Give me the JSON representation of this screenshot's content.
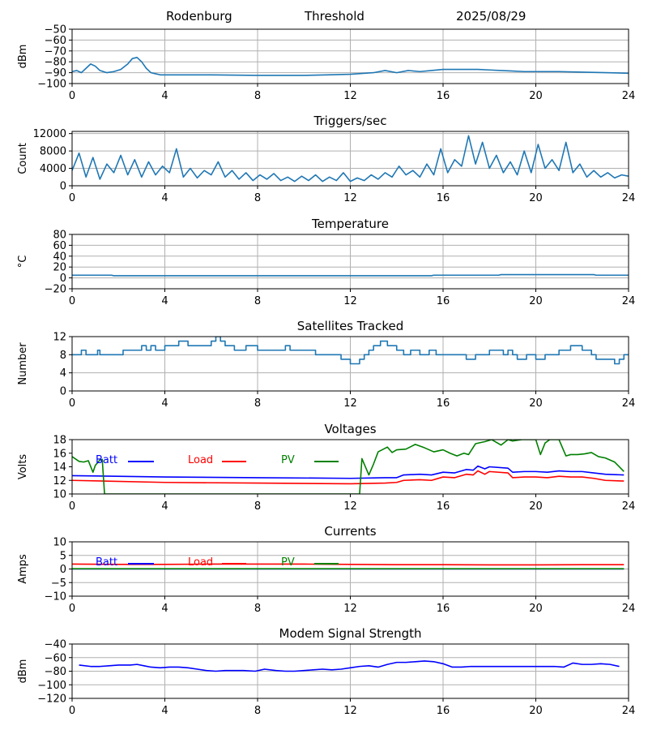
{
  "header": {
    "station": "Rodenburg",
    "mode": "Threshold",
    "date": "2025/08/29"
  },
  "colors": {
    "default": "#1f77b4",
    "batt": "#0000ff",
    "load": "#ff0000",
    "pv": "#008000",
    "grid": "#b0b0b0"
  },
  "chart_data": [
    {
      "type": "line",
      "title": "",
      "ylabel": "dBm",
      "xlim": [
        0,
        24
      ],
      "ylim": [
        -100,
        -50
      ],
      "xticks": [
        0,
        4,
        8,
        12,
        16,
        20,
        24
      ],
      "yticks": [
        -100,
        -90,
        -80,
        -70,
        -60,
        -50
      ],
      "grid": true,
      "series": [
        {
          "color": "#1f77b4",
          "x": [
            0,
            0.2,
            0.4,
            0.6,
            0.8,
            1.0,
            1.2,
            1.5,
            1.8,
            2.1,
            2.4,
            2.6,
            2.8,
            3.0,
            3.2,
            3.4,
            3.6,
            3.8,
            4.0,
            5,
            6,
            8,
            10,
            11,
            12,
            13,
            13.5,
            14,
            14.5,
            15,
            15.5,
            16,
            16.5,
            17,
            17.5,
            18,
            18.5,
            19,
            19.5,
            20,
            21,
            22,
            23,
            24
          ],
          "y": [
            -89,
            -88,
            -90,
            -86,
            -82,
            -84,
            -88,
            -90,
            -89,
            -87,
            -82,
            -77,
            -76,
            -80,
            -86,
            -90,
            -91,
            -92,
            -92,
            -92,
            -92,
            -92.5,
            -92.5,
            -92,
            -91.5,
            -90,
            -88,
            -90,
            -88,
            -89,
            -88,
            -87,
            -87,
            -87,
            -87,
            -87.5,
            -88,
            -88.5,
            -89,
            -89,
            -89,
            -89.5,
            -90,
            -90.5
          ]
        }
      ]
    },
    {
      "type": "line",
      "title": "Triggers/sec",
      "ylabel": "Count",
      "xlim": [
        0,
        24
      ],
      "ylim": [
        0,
        12500
      ],
      "xticks": [
        0,
        4,
        8,
        12,
        16,
        20,
        24
      ],
      "yticks": [
        0,
        4000,
        8000,
        12000
      ],
      "grid": true,
      "series": [
        {
          "color": "#1f77b4",
          "x": [
            0,
            0.3,
            0.6,
            0.9,
            1.2,
            1.5,
            1.8,
            2.1,
            2.4,
            2.7,
            3.0,
            3.3,
            3.6,
            3.9,
            4.2,
            4.5,
            4.8,
            5.1,
            5.4,
            5.7,
            6.0,
            6.3,
            6.6,
            6.9,
            7.2,
            7.5,
            7.8,
            8.1,
            8.4,
            8.7,
            9.0,
            9.3,
            9.6,
            9.9,
            10.2,
            10.5,
            10.8,
            11.1,
            11.4,
            11.7,
            12.0,
            12.3,
            12.6,
            12.9,
            13.2,
            13.5,
            13.8,
            14.1,
            14.4,
            14.7,
            15.0,
            15.3,
            15.6,
            15.9,
            16.2,
            16.5,
            16.8,
            17.1,
            17.4,
            17.7,
            18.0,
            18.3,
            18.6,
            18.9,
            19.2,
            19.5,
            19.8,
            20.1,
            20.4,
            20.7,
            21.0,
            21.3,
            21.6,
            21.9,
            22.2,
            22.5,
            22.8,
            23.1,
            23.4,
            23.7,
            24
          ],
          "y": [
            3500,
            7500,
            2000,
            6500,
            1500,
            5000,
            3000,
            7000,
            2500,
            6000,
            2000,
            5500,
            2500,
            4500,
            3000,
            8500,
            2000,
            4000,
            1800,
            3500,
            2500,
            5500,
            2000,
            3500,
            1500,
            3000,
            1200,
            2500,
            1500,
            2800,
            1200,
            2000,
            1000,
            2200,
            1200,
            2500,
            1000,
            2000,
            1200,
            3000,
            1000,
            1800,
            1200,
            2500,
            1500,
            3000,
            2000,
            4500,
            2500,
            3500,
            2000,
            5000,
            2500,
            8500,
            3000,
            6000,
            4500,
            11500,
            5000,
            10000,
            4000,
            7000,
            3000,
            5500,
            2500,
            8000,
            3000,
            9500,
            4000,
            6000,
            3500,
            10000,
            3000,
            5000,
            2000,
            3500,
            2000,
            3000,
            1800,
            2500,
            2200
          ]
        }
      ]
    },
    {
      "type": "line",
      "title": "Temperature",
      "ylabel": "°C",
      "xlim": [
        0,
        24
      ],
      "ylim": [
        -20,
        80
      ],
      "xticks": [
        0,
        4,
        8,
        12,
        16,
        20,
        24
      ],
      "yticks": [
        -20,
        0,
        20,
        40,
        60,
        80
      ],
      "grid": true,
      "series": [
        {
          "color": "#1f77b4",
          "x": [
            0,
            1.7,
            1.8,
            8,
            12,
            15.5,
            15.6,
            18.4,
            18.5,
            22.5,
            22.6,
            24
          ],
          "y": [
            5,
            5,
            4,
            4,
            4,
            4,
            5,
            5,
            6,
            6,
            5,
            5
          ]
        }
      ]
    },
    {
      "type": "line",
      "title": "Satellites Tracked",
      "ylabel": "Number",
      "xlim": [
        0,
        24
      ],
      "ylim": [
        0,
        12
      ],
      "xticks": [
        0,
        4,
        8,
        12,
        16,
        20,
        24
      ],
      "yticks": [
        0,
        4,
        8,
        12
      ],
      "grid": true,
      "step": true,
      "series": [
        {
          "color": "#1f77b4",
          "x": [
            0,
            0.4,
            0.6,
            1.1,
            1.2,
            2.2,
            3.0,
            3.2,
            3.4,
            3.6,
            4.0,
            4.6,
            5.0,
            6.0,
            6.2,
            6.4,
            6.6,
            7.0,
            7.5,
            8,
            9,
            9.2,
            9.4,
            10.0,
            10.5,
            11.0,
            11.6,
            12.0,
            12.4,
            12.6,
            12.8,
            13.0,
            13.3,
            13.6,
            14.0,
            14.3,
            14.6,
            15.0,
            15.4,
            15.7,
            16.0,
            16.8,
            17.0,
            17.4,
            18.0,
            18.6,
            18.8,
            19.0,
            19.2,
            19.6,
            20.0,
            20.4,
            21.0,
            21.5,
            22.0,
            22.4,
            22.6,
            23.0,
            23.4,
            23.6,
            23.8,
            24
          ],
          "y": [
            8,
            9,
            8,
            9,
            8,
            9,
            10,
            9,
            10,
            9,
            10,
            11,
            10,
            11,
            12,
            11,
            10,
            9,
            10,
            9,
            9,
            10,
            9,
            9,
            8,
            8,
            7,
            6,
            7,
            8,
            9,
            10,
            11,
            10,
            9,
            8,
            9,
            8,
            9,
            8,
            8,
            8,
            7,
            8,
            9,
            8,
            9,
            8,
            7,
            8,
            7,
            8,
            9,
            10,
            9,
            8,
            7,
            7,
            6,
            7,
            8,
            8
          ]
        }
      ]
    },
    {
      "type": "line",
      "title": "Voltages",
      "ylabel": "Volts",
      "xlim": [
        0,
        24
      ],
      "ylim": [
        10,
        18
      ],
      "xticks": [
        0,
        4,
        8,
        12,
        16,
        20,
        24
      ],
      "yticks": [
        10,
        12,
        14,
        16,
        18
      ],
      "grid": false,
      "legend": [
        {
          "label": "Batt",
          "color": "#0000ff"
        },
        {
          "label": "Load",
          "color": "#ff0000"
        },
        {
          "label": "PV",
          "color": "#008000"
        }
      ],
      "series": [
        {
          "name": "Batt",
          "color": "#0000ff",
          "x": [
            0,
            4,
            8,
            12,
            13.5,
            14,
            14.3,
            15,
            15.5,
            16,
            16.5,
            17,
            17.3,
            17.5,
            17.8,
            18,
            18.8,
            19,
            19.5,
            20,
            20.5,
            21,
            21.5,
            22,
            22.5,
            23,
            23.8
          ],
          "y": [
            12.7,
            12.5,
            12.4,
            12.3,
            12.4,
            12.4,
            12.8,
            12.9,
            12.8,
            13.2,
            13.1,
            13.6,
            13.5,
            14.1,
            13.7,
            14.0,
            13.8,
            13.2,
            13.3,
            13.3,
            13.2,
            13.4,
            13.3,
            13.3,
            13.1,
            12.9,
            12.8
          ]
        },
        {
          "name": "Load",
          "color": "#ff0000",
          "x": [
            0,
            4,
            8,
            12,
            13.5,
            14,
            14.3,
            15,
            15.5,
            16,
            16.5,
            17,
            17.3,
            17.5,
            17.8,
            18,
            18.8,
            19,
            19.5,
            20,
            20.5,
            21,
            21.5,
            22,
            22.5,
            23,
            23.8
          ],
          "y": [
            12.0,
            11.7,
            11.6,
            11.5,
            11.6,
            11.7,
            12.0,
            12.1,
            12.0,
            12.5,
            12.4,
            12.9,
            12.8,
            13.4,
            12.9,
            13.3,
            13.1,
            12.4,
            12.5,
            12.5,
            12.4,
            12.6,
            12.5,
            12.5,
            12.3,
            12.0,
            11.9
          ]
        },
        {
          "name": "PV",
          "color": "#008000",
          "x": [
            0,
            0.3,
            0.5,
            0.7,
            0.9,
            1.0,
            1.2,
            1.3,
            1.4,
            12.4,
            12.5,
            12.8,
            13.0,
            13.2,
            13.6,
            13.8,
            14.0,
            14.4,
            14.8,
            15.2,
            15.6,
            16.0,
            16.3,
            16.6,
            16.9,
            17.1,
            17.4,
            17.8,
            18.1,
            18.5,
            18.8,
            19.0,
            19.4,
            19.8,
            20.0,
            20.2,
            20.4,
            20.6,
            21.0,
            21.3,
            21.5,
            21.8,
            22.1,
            22.4,
            22.7,
            23.0,
            23.4,
            23.8
          ],
          "y": [
            15.5,
            14.8,
            14.7,
            14.9,
            13.2,
            14.2,
            15.0,
            15.1,
            10.0,
            10.0,
            15.2,
            12.8,
            14.4,
            16.2,
            16.9,
            16.1,
            16.5,
            16.6,
            17.3,
            16.8,
            16.2,
            16.5,
            16.0,
            15.6,
            16.0,
            15.8,
            17.4,
            17.7,
            18.0,
            17.2,
            18.0,
            17.8,
            18.0,
            18.0,
            18.0,
            15.8,
            17.5,
            18.0,
            18.0,
            15.6,
            15.8,
            15.8,
            15.9,
            16.1,
            15.5,
            15.3,
            14.7,
            13.3
          ]
        }
      ]
    },
    {
      "type": "line",
      "title": "Currents",
      "ylabel": "Amps",
      "xlim": [
        0,
        24
      ],
      "ylim": [
        -10,
        10
      ],
      "xticks": [
        0,
        4,
        8,
        12,
        16,
        20,
        24
      ],
      "yticks": [
        -10,
        -5,
        0,
        5,
        10
      ],
      "grid": true,
      "legend": [
        {
          "label": "Batt",
          "color": "#0000ff"
        },
        {
          "label": "Load",
          "color": "#ff0000"
        },
        {
          "label": "PV",
          "color": "#008000"
        }
      ],
      "series": [
        {
          "name": "Batt",
          "color": "#0000ff",
          "x": [
            0,
            23.8
          ],
          "y": [
            0,
            0
          ]
        },
        {
          "name": "Load",
          "color": "#ff0000",
          "x": [
            0,
            2,
            4,
            6,
            8,
            10,
            12,
            14,
            16,
            18,
            20,
            22,
            23.8
          ],
          "y": [
            1.8,
            1.7,
            1.7,
            1.8,
            1.8,
            1.8,
            1.7,
            1.6,
            1.6,
            1.5,
            1.5,
            1.6,
            1.6
          ]
        },
        {
          "name": "PV",
          "color": "#008000",
          "x": [
            0,
            23.8
          ],
          "y": [
            0.1,
            0.1
          ]
        }
      ]
    },
    {
      "type": "line",
      "title": "Modem Signal Strength",
      "ylabel": "dBm",
      "xlim": [
        0,
        24
      ],
      "ylim": [
        -120,
        -40
      ],
      "xticks": [
        0,
        4,
        8,
        12,
        16,
        20,
        24
      ],
      "yticks": [
        -120,
        -100,
        -80,
        -60,
        -40
      ],
      "grid": true,
      "series": [
        {
          "color": "#0000ff",
          "x": [
            0.3,
            0.8,
            1.2,
            1.6,
            2.0,
            2.5,
            2.8,
            3.1,
            3.4,
            3.8,
            4.2,
            4.6,
            5.0,
            5.4,
            5.8,
            6.2,
            6.6,
            7.0,
            7.4,
            7.9,
            8.3,
            8.8,
            9.2,
            9.6,
            10.0,
            10.4,
            10.8,
            11.2,
            11.6,
            12.0,
            12.4,
            12.8,
            13.2,
            13.6,
            14.0,
            14.4,
            14.8,
            15.2,
            15.6,
            16.0,
            16.4,
            16.8,
            17.2,
            17.6,
            18.0,
            18.4,
            18.8,
            19.2,
            19.6,
            20.0,
            20.4,
            20.8,
            21.2,
            21.6,
            22.0,
            22.4,
            22.8,
            23.2,
            23.6
          ],
          "y": [
            -71,
            -73,
            -73,
            -72,
            -71,
            -71,
            -70,
            -72,
            -74,
            -75,
            -74,
            -74,
            -75,
            -77,
            -79,
            -80,
            -79,
            -79,
            -79,
            -80,
            -77,
            -79,
            -80,
            -80,
            -79,
            -78,
            -77,
            -78,
            -77,
            -75,
            -73,
            -72,
            -74,
            -70,
            -67,
            -67,
            -66,
            -65,
            -66,
            -69,
            -74,
            -74,
            -73,
            -73,
            -73,
            -73,
            -73,
            -73,
            -73,
            -73,
            -73,
            -73,
            -74,
            -68,
            -70,
            -70,
            -69,
            -70,
            -73
          ]
        }
      ]
    }
  ]
}
